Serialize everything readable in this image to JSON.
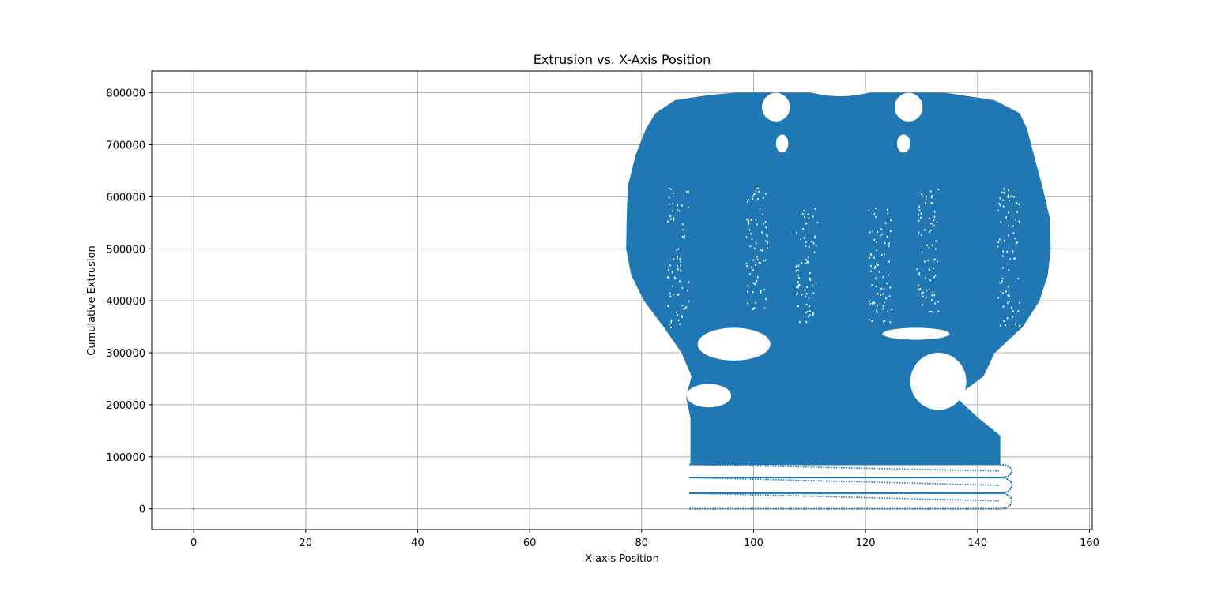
{
  "chart_data": {
    "type": "scatter",
    "title": "Extrusion vs. X-Axis Position",
    "xlabel": "X-axis Position",
    "ylabel": "Cumulative Extrusion",
    "xlim": [
      -7.5,
      160.5
    ],
    "ylim": [
      -40000,
      842000
    ],
    "xticks": [
      0,
      20,
      40,
      60,
      80,
      100,
      120,
      140,
      160
    ],
    "yticks": [
      0,
      100000,
      200000,
      300000,
      400000,
      500000,
      600000,
      700000,
      800000
    ],
    "grid": true,
    "series_color": "#1f77b4",
    "grid_color": "#b0b0b0",
    "outlier_point": {
      "x": 0,
      "y": 0
    },
    "raft_spiral": {
      "x_range": [
        88.5,
        144
      ],
      "bands": [
        {
          "y_start": 0,
          "y_end": 30000,
          "x_reach": 144
        },
        {
          "y_start": 30000,
          "y_end": 60000,
          "x_reach": 144
        },
        {
          "y_start": 60000,
          "y_end": 85000,
          "x_reach": 144
        }
      ]
    },
    "body_envelope": [
      {
        "y": 85000,
        "x_min": 88.8,
        "x_max": 144.0
      },
      {
        "y": 140000,
        "x_min": 88.8,
        "x_max": 144.0
      },
      {
        "y": 175000,
        "x_min": 88.8,
        "x_max": 140.0
      },
      {
        "y": 215000,
        "x_min": 88.0,
        "x_max": 136.0
      },
      {
        "y": 255000,
        "x_min": 89.0,
        "x_max": 141.0
      },
      {
        "y": 300000,
        "x_min": 87.2,
        "x_max": 143.0
      },
      {
        "y": 350000,
        "x_min": 84.0,
        "x_max": 148.0
      },
      {
        "y": 400000,
        "x_min": 80.5,
        "x_max": 151.0
      },
      {
        "y": 450000,
        "x_min": 78.2,
        "x_max": 152.5
      },
      {
        "y": 500000,
        "x_min": 77.3,
        "x_max": 153.0
      },
      {
        "y": 560000,
        "x_min": 77.4,
        "x_max": 152.8
      },
      {
        "y": 620000,
        "x_min": 77.6,
        "x_max": 151.5
      },
      {
        "y": 680000,
        "x_min": 79.0,
        "x_max": 150.0
      },
      {
        "y": 730000,
        "x_min": 80.8,
        "x_max": 148.8
      },
      {
        "y": 760000,
        "x_min": 82.5,
        "x_max": 147.5
      },
      {
        "y": 785000,
        "x_min": 86.0,
        "x_max": 143.0
      },
      {
        "y": 795000,
        "x_min": 92.0,
        "x_max": 137.0
      },
      {
        "y": 800000,
        "x_min": 97.0,
        "x_max": 134.0
      }
    ],
    "top_notch": {
      "x_range": [
        109.0,
        122.0
      ],
      "y_low": 785000
    },
    "voids": [
      {
        "x": [
          101.5,
          106.5
        ],
        "y": [
          745000,
          800000
        ]
      },
      {
        "x": [
          125.2,
          130.2
        ],
        "y": [
          745000,
          800000
        ]
      },
      {
        "x": [
          104.0,
          106.2
        ],
        "y": [
          685000,
          720000
        ]
      },
      {
        "x": [
          125.6,
          128.0
        ],
        "y": [
          685000,
          720000
        ]
      },
      {
        "x": [
          90.0,
          103.0
        ],
        "y": [
          285000,
          348000
        ]
      },
      {
        "x": [
          123.0,
          135.0
        ],
        "y": [
          325000,
          348000
        ]
      },
      {
        "x": [
          128.0,
          138.0
        ],
        "y": [
          190000,
          300000
        ]
      },
      {
        "x": [
          88.0,
          96.0
        ],
        "y": [
          195000,
          240000
        ]
      }
    ],
    "speckle_columns": [
      {
        "x_center": 86.5,
        "y_range": [
          350000,
          620000
        ]
      },
      {
        "x_center": 100.5,
        "y_range": [
          380000,
          620000
        ]
      },
      {
        "x_center": 109.5,
        "y_range": [
          360000,
          580000
        ]
      },
      {
        "x_center": 122.5,
        "y_range": [
          360000,
          580000
        ]
      },
      {
        "x_center": 131.0,
        "y_range": [
          380000,
          620000
        ]
      },
      {
        "x_center": 145.5,
        "y_range": [
          350000,
          620000
        ]
      }
    ]
  }
}
